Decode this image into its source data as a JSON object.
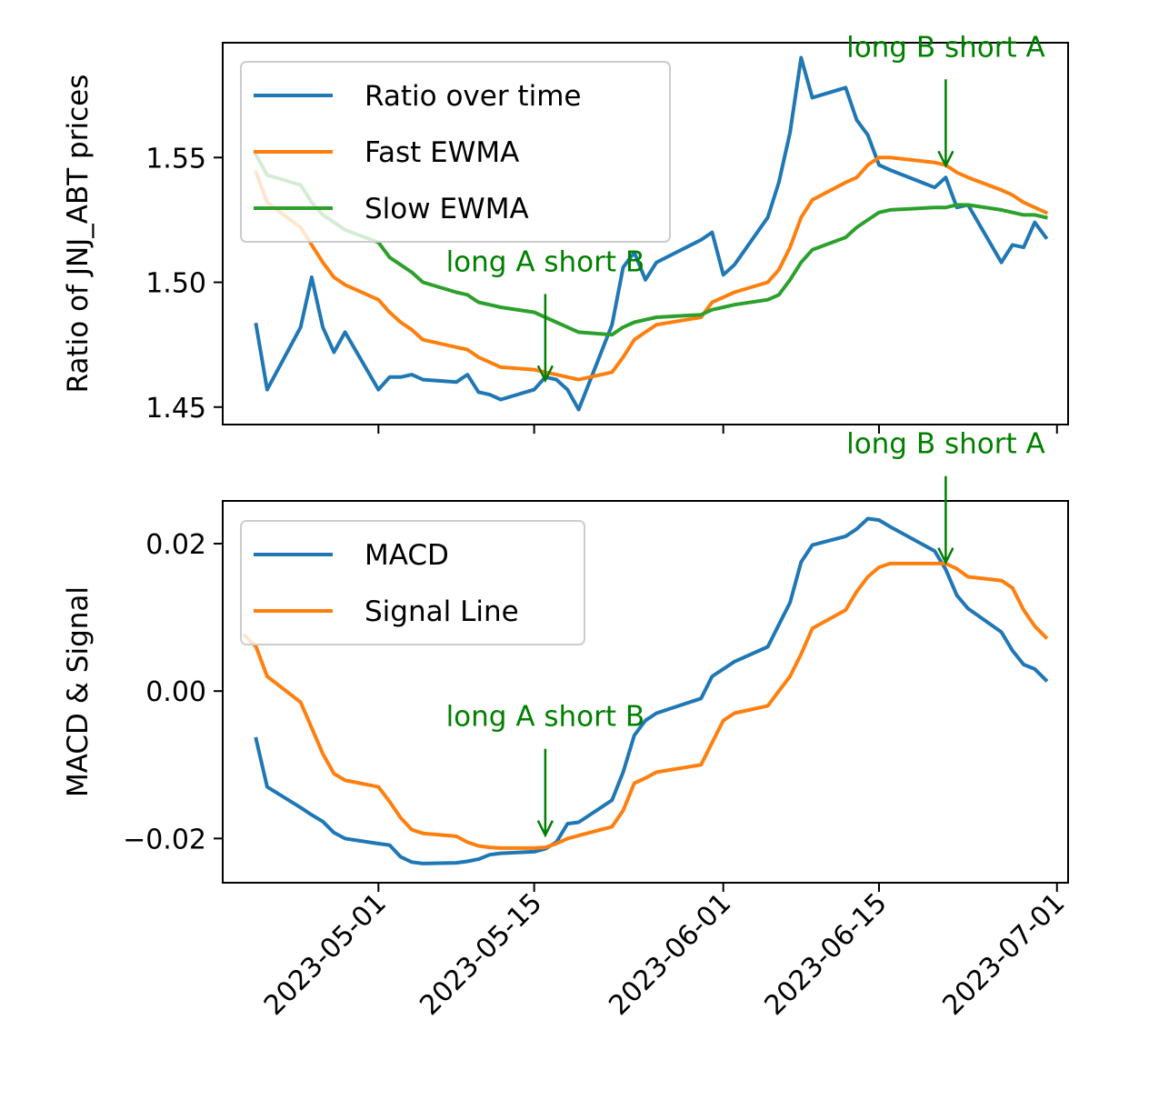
{
  "chart_data": [
    {
      "type": "line",
      "title": "",
      "xlabel": "",
      "ylabel": "Ratio of JNJ_ABT prices",
      "xlim": [
        "2023-04-17",
        "2023-07-02"
      ],
      "ylim": [
        1.443,
        1.596
      ],
      "yticks": [
        "1.45",
        "1.50",
        "1.55"
      ],
      "xticks": [
        "2023-05-01",
        "2023-05-15",
        "2023-06-01",
        "2023-06-15",
        "2023-07-01"
      ],
      "show_xtick_labels": false,
      "grid": false,
      "legend_position": "top-left",
      "series": [
        {
          "name": "Ratio over time",
          "color": "#1f77b4",
          "x": [
            "2023-04-20",
            "2023-04-21",
            "2023-04-24",
            "2023-04-25",
            "2023-04-26",
            "2023-04-27",
            "2023-04-28",
            "2023-05-01",
            "2023-05-02",
            "2023-05-03",
            "2023-05-04",
            "2023-05-05",
            "2023-05-08",
            "2023-05-09",
            "2023-05-10",
            "2023-05-11",
            "2023-05-12",
            "2023-05-15",
            "2023-05-16",
            "2023-05-17",
            "2023-05-18",
            "2023-05-19",
            "2023-05-22",
            "2023-05-23",
            "2023-05-24",
            "2023-05-25",
            "2023-05-26",
            "2023-05-30",
            "2023-05-31",
            "2023-06-01",
            "2023-06-02",
            "2023-06-05",
            "2023-06-06",
            "2023-06-07",
            "2023-06-08",
            "2023-06-09",
            "2023-06-12",
            "2023-06-13",
            "2023-06-14",
            "2023-06-15",
            "2023-06-16",
            "2023-06-20",
            "2023-06-21",
            "2023-06-22",
            "2023-06-23",
            "2023-06-26",
            "2023-06-27",
            "2023-06-28",
            "2023-06-29",
            "2023-06-30"
          ],
          "values": [
            1.483,
            1.457,
            1.482,
            1.502,
            1.482,
            1.472,
            1.48,
            1.457,
            1.462,
            1.462,
            1.463,
            1.461,
            1.46,
            1.463,
            1.456,
            1.455,
            1.453,
            1.457,
            1.462,
            1.461,
            1.457,
            1.449,
            1.483,
            1.506,
            1.512,
            1.501,
            1.508,
            1.517,
            1.52,
            1.503,
            1.507,
            1.526,
            1.54,
            1.56,
            1.59,
            1.574,
            1.578,
            1.565,
            1.559,
            1.547,
            1.545,
            1.538,
            1.542,
            1.53,
            1.531,
            1.508,
            1.515,
            1.514,
            1.524,
            1.518
          ]
        },
        {
          "name": "Fast EWMA",
          "color": "#ff7f0e",
          "x": [
            "2023-04-20",
            "2023-04-21",
            "2023-04-24",
            "2023-04-25",
            "2023-04-26",
            "2023-04-27",
            "2023-04-28",
            "2023-05-01",
            "2023-05-02",
            "2023-05-03",
            "2023-05-04",
            "2023-05-05",
            "2023-05-08",
            "2023-05-09",
            "2023-05-10",
            "2023-05-11",
            "2023-05-12",
            "2023-05-15",
            "2023-05-16",
            "2023-05-17",
            "2023-05-18",
            "2023-05-19",
            "2023-05-22",
            "2023-05-23",
            "2023-05-24",
            "2023-05-25",
            "2023-05-26",
            "2023-05-30",
            "2023-05-31",
            "2023-06-01",
            "2023-06-02",
            "2023-06-05",
            "2023-06-06",
            "2023-06-07",
            "2023-06-08",
            "2023-06-09",
            "2023-06-12",
            "2023-06-13",
            "2023-06-14",
            "2023-06-15",
            "2023-06-16",
            "2023-06-20",
            "2023-06-21",
            "2023-06-22",
            "2023-06-23",
            "2023-06-26",
            "2023-06-27",
            "2023-06-28",
            "2023-06-29",
            "2023-06-30"
          ],
          "values": [
            1.544,
            1.532,
            1.522,
            1.515,
            1.508,
            1.502,
            1.499,
            1.493,
            1.488,
            1.484,
            1.481,
            1.477,
            1.474,
            1.473,
            1.47,
            1.468,
            1.466,
            1.465,
            1.464,
            1.463,
            1.462,
            1.461,
            1.464,
            1.47,
            1.477,
            1.48,
            1.483,
            1.486,
            1.492,
            1.494,
            1.496,
            1.5,
            1.505,
            1.514,
            1.526,
            1.533,
            1.54,
            1.542,
            1.547,
            1.55,
            1.55,
            1.548,
            1.547,
            1.544,
            1.542,
            1.537,
            1.535,
            1.532,
            1.53,
            1.528
          ]
        },
        {
          "name": "Slow EWMA",
          "color": "#2ca02c",
          "x": [
            "2023-04-20",
            "2023-04-21",
            "2023-04-24",
            "2023-04-25",
            "2023-04-26",
            "2023-04-27",
            "2023-04-28",
            "2023-05-01",
            "2023-05-02",
            "2023-05-03",
            "2023-05-04",
            "2023-05-05",
            "2023-05-08",
            "2023-05-09",
            "2023-05-10",
            "2023-05-11",
            "2023-05-12",
            "2023-05-15",
            "2023-05-16",
            "2023-05-17",
            "2023-05-18",
            "2023-05-19",
            "2023-05-22",
            "2023-05-23",
            "2023-05-24",
            "2023-05-25",
            "2023-05-26",
            "2023-05-30",
            "2023-05-31",
            "2023-06-01",
            "2023-06-02",
            "2023-06-05",
            "2023-06-06",
            "2023-06-07",
            "2023-06-08",
            "2023-06-09",
            "2023-06-12",
            "2023-06-13",
            "2023-06-14",
            "2023-06-15",
            "2023-06-16",
            "2023-06-20",
            "2023-06-21",
            "2023-06-22",
            "2023-06-23",
            "2023-06-26",
            "2023-06-27",
            "2023-06-28",
            "2023-06-29",
            "2023-06-30"
          ],
          "values": [
            1.551,
            1.543,
            1.539,
            1.532,
            1.527,
            1.524,
            1.521,
            1.516,
            1.51,
            1.507,
            1.504,
            1.5,
            1.496,
            1.495,
            1.492,
            1.491,
            1.49,
            1.488,
            1.486,
            1.484,
            1.482,
            1.48,
            1.479,
            1.482,
            1.484,
            1.485,
            1.486,
            1.487,
            1.489,
            1.49,
            1.491,
            1.493,
            1.495,
            1.501,
            1.508,
            1.513,
            1.518,
            1.522,
            1.525,
            1.528,
            1.529,
            1.53,
            1.53,
            1.531,
            1.531,
            1.529,
            1.528,
            1.527,
            1.527,
            1.526
          ]
        }
      ],
      "annotations": [
        {
          "text": "long A short B",
          "x": "2023-05-16",
          "y": 1.46,
          "color": "#008000"
        },
        {
          "text": "long B short A",
          "x": "2023-06-21",
          "y": 1.546,
          "color": "#008000"
        }
      ]
    },
    {
      "type": "line",
      "title": "",
      "xlabel": "",
      "ylabel": "MACD & Signal",
      "xlim": [
        "2023-04-17",
        "2023-07-02"
      ],
      "ylim": [
        -0.026,
        0.0258
      ],
      "yticks": [
        "−0.02",
        "0.00",
        "0.02"
      ],
      "xticks": [
        "2023-05-01",
        "2023-05-15",
        "2023-06-01",
        "2023-06-15",
        "2023-07-01"
      ],
      "show_xtick_labels": true,
      "grid": false,
      "legend_position": "top-left",
      "series": [
        {
          "name": "MACD",
          "color": "#1f77b4",
          "x": [
            "2023-04-20",
            "2023-04-21",
            "2023-04-24",
            "2023-04-25",
            "2023-04-26",
            "2023-04-27",
            "2023-04-28",
            "2023-05-01",
            "2023-05-02",
            "2023-05-03",
            "2023-05-04",
            "2023-05-05",
            "2023-05-08",
            "2023-05-09",
            "2023-05-10",
            "2023-05-11",
            "2023-05-12",
            "2023-05-15",
            "2023-05-16",
            "2023-05-17",
            "2023-05-18",
            "2023-05-19",
            "2023-05-22",
            "2023-05-23",
            "2023-05-24",
            "2023-05-25",
            "2023-05-26",
            "2023-05-30",
            "2023-05-31",
            "2023-06-01",
            "2023-06-02",
            "2023-06-05",
            "2023-06-06",
            "2023-06-07",
            "2023-06-08",
            "2023-06-09",
            "2023-06-12",
            "2023-06-13",
            "2023-06-14",
            "2023-06-15",
            "2023-06-16",
            "2023-06-20",
            "2023-06-21",
            "2023-06-22",
            "2023-06-23",
            "2023-06-26",
            "2023-06-27",
            "2023-06-28",
            "2023-06-29",
            "2023-06-30"
          ],
          "values": [
            -0.0065,
            -0.013,
            -0.0158,
            -0.0168,
            -0.0177,
            -0.0192,
            -0.02,
            -0.0207,
            -0.0209,
            -0.0225,
            -0.0232,
            -0.0234,
            -0.0233,
            -0.0231,
            -0.0228,
            -0.0222,
            -0.022,
            -0.0218,
            -0.0214,
            -0.0205,
            -0.018,
            -0.0178,
            -0.0148,
            -0.011,
            -0.006,
            -0.004,
            -0.003,
            -0.001,
            0.002,
            0.003,
            0.004,
            0.006,
            0.009,
            0.012,
            0.0175,
            0.0198,
            0.021,
            0.022,
            0.0234,
            0.0232,
            0.0223,
            0.019,
            0.0165,
            0.013,
            0.0112,
            0.008,
            0.0055,
            0.0036,
            0.003,
            0.0015
          ]
        },
        {
          "name": "Signal Line",
          "color": "#ff7f0e",
          "x": [
            "2023-04-19",
            "2023-04-20",
            "2023-04-21",
            "2023-04-24",
            "2023-04-25",
            "2023-04-26",
            "2023-04-27",
            "2023-04-28",
            "2023-05-01",
            "2023-05-02",
            "2023-05-03",
            "2023-05-04",
            "2023-05-05",
            "2023-05-08",
            "2023-05-09",
            "2023-05-10",
            "2023-05-11",
            "2023-05-12",
            "2023-05-15",
            "2023-05-16",
            "2023-05-17",
            "2023-05-18",
            "2023-05-19",
            "2023-05-22",
            "2023-05-23",
            "2023-05-24",
            "2023-05-25",
            "2023-05-26",
            "2023-05-30",
            "2023-05-31",
            "2023-06-01",
            "2023-06-02",
            "2023-06-05",
            "2023-06-06",
            "2023-06-07",
            "2023-06-08",
            "2023-06-09",
            "2023-06-12",
            "2023-06-13",
            "2023-06-14",
            "2023-06-15",
            "2023-06-16",
            "2023-06-20",
            "2023-06-21",
            "2023-06-22",
            "2023-06-23",
            "2023-06-26",
            "2023-06-27",
            "2023-06-28",
            "2023-06-29",
            "2023-06-30"
          ],
          "values": [
            0.0075,
            0.006,
            0.002,
            -0.0015,
            -0.005,
            -0.0085,
            -0.0112,
            -0.0121,
            -0.013,
            -0.015,
            -0.0172,
            -0.0188,
            -0.0193,
            -0.0197,
            -0.0205,
            -0.021,
            -0.0212,
            -0.0213,
            -0.0213,
            -0.0212,
            -0.0207,
            -0.02,
            -0.0196,
            -0.0184,
            -0.0162,
            -0.0125,
            -0.0118,
            -0.011,
            -0.01,
            -0.007,
            -0.004,
            -0.003,
            -0.002,
            0.0,
            0.002,
            0.005,
            0.0085,
            0.011,
            0.0135,
            0.0155,
            0.0168,
            0.0173,
            0.0173,
            0.0173,
            0.0166,
            0.0155,
            0.015,
            0.014,
            0.011,
            0.0088,
            0.0073
          ]
        }
      ],
      "annotations": [
        {
          "text": "long A short B",
          "x": "2023-05-16",
          "y": -0.0198,
          "color": "#008000"
        },
        {
          "text": "long B short A",
          "x": "2023-06-21",
          "y": 0.0172,
          "color": "#008000"
        }
      ]
    }
  ]
}
